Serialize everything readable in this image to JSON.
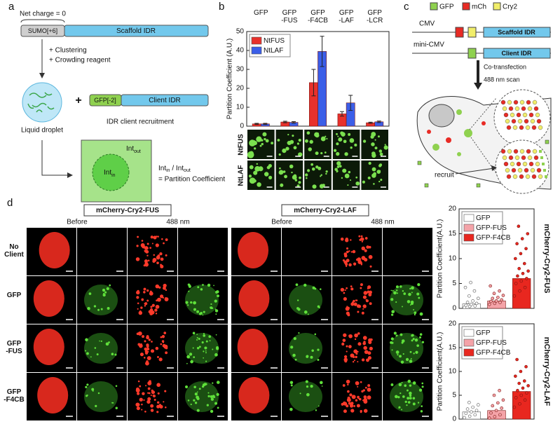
{
  "panel_labels": [
    "a",
    "b",
    "c",
    "d"
  ],
  "panel_a": {
    "net_charge": "Net charge = 0",
    "sumo": "SUMO[+6]",
    "scaffold": "Scaffold IDR",
    "step1": "+ Clustering",
    "step2": "+ Crowding reagent",
    "droplet": "Liquid droplet",
    "plus": "+",
    "gfp": "GFP[-2]",
    "client": "Client IDR",
    "recruitment": "IDR client recruitment",
    "int": "Int",
    "sub_in": "in",
    "sub_out": "out",
    "slash": " / ",
    "equation": "= Partition Coefficient"
  },
  "panel_b_images": {
    "rows": [
      "NtFUS",
      "NtLAF"
    ]
  },
  "panel_c": {
    "legend": [
      "GFP",
      "mCh",
      "Cry2"
    ],
    "promoter1": "CMV",
    "scaffold": "Scaffold IDR",
    "promoter2": "mini-CMV",
    "client": "Client IDR",
    "step1": "Co-transfection",
    "step2": "488 nm scan",
    "recruit": "recruit"
  },
  "panel_d": {
    "groups": [
      "mCherry-Cry2-FUS",
      "mCherry-Cry2-LAF"
    ],
    "columns": [
      "Before",
      "488 nm"
    ],
    "rows": [
      "No\nClient",
      "GFP",
      "GFP\n-FUS",
      "GFP\n-F4CB"
    ]
  },
  "chart_data": [
    {
      "type": "bar",
      "ylabel": "Partition Coefficient (A.U.)",
      "xlabel_position": "top",
      "categories": [
        "GFP",
        "GFP\n-FUS",
        "GFP\n-F4CB",
        "GFP\n-LAF",
        "GFP\n-LCR"
      ],
      "series": [
        {
          "name": "NtFUS",
          "color": "#e8312c",
          "values": [
            1.2,
            2.2,
            23,
            6.5,
            1.8
          ],
          "error": [
            0.3,
            0.4,
            7,
            1.2,
            0.3
          ]
        },
        {
          "name": "NtLAF",
          "color": "#3b5ee8",
          "values": [
            1.2,
            2.0,
            39.5,
            12.3,
            2.3
          ],
          "error": [
            0.3,
            0.4,
            8,
            4,
            0.4
          ]
        }
      ],
      "ylim": [
        0,
        50
      ],
      "yticks": [
        0,
        10,
        20,
        30,
        40,
        50
      ],
      "legend": "upper left"
    },
    {
      "type": "bar",
      "title": "mCherry-Cry2-FUS",
      "ylabel": "Partition Coefficient(A.U.)",
      "series": [
        {
          "name": "GFP",
          "color": "#ffffff",
          "values": [
            0.9
          ],
          "points": [
            0.2,
            0.4,
            0.5,
            0.6,
            0.8,
            1.0,
            1.2,
            1.5,
            2.0,
            2.5,
            3.5,
            4.2,
            5.2
          ]
        },
        {
          "name": "GFP-FUS",
          "color": "#f4a3a8",
          "values": [
            1.5
          ],
          "points": [
            0.8,
            1.0,
            1.2,
            1.4,
            1.5,
            1.7,
            2.0,
            2.2,
            2.6,
            3.0,
            3.5,
            4.5
          ]
        },
        {
          "name": "GFP-F4CB",
          "color": "#e8271f",
          "values": [
            6.0
          ],
          "points": [
            2.5,
            3.5,
            4.2,
            5,
            5.5,
            6,
            6.5,
            7,
            7.5,
            8,
            9,
            10,
            11,
            12,
            13,
            14,
            15,
            16.5
          ]
        }
      ],
      "ylim": [
        0,
        20
      ],
      "yticks": [
        0,
        5,
        10,
        15,
        20
      ],
      "legend": "upper left"
    },
    {
      "type": "bar",
      "title": "mCherry-Cry2-LAF",
      "ylabel": "Partition Coefficient(A.U.)",
      "series": [
        {
          "name": "GFP",
          "color": "#ffffff",
          "values": [
            1.5
          ],
          "points": [
            0.3,
            0.6,
            0.9,
            1.2,
            1.5,
            1.8,
            2.1,
            2.5,
            3.0,
            3.5
          ]
        },
        {
          "name": "GFP-FUS",
          "color": "#f4a3a8",
          "values": [
            1.8
          ],
          "points": [
            0.2,
            0.5,
            0.9,
            1.3,
            1.8,
            2.3,
            2.8,
            3.4,
            4.0,
            5.0,
            6.0
          ]
        },
        {
          "name": "GFP-F4CB",
          "color": "#e8271f",
          "values": [
            5.8
          ],
          "points": [
            2.5,
            3.2,
            4,
            4.5,
            5,
            5.5,
            6,
            6.5,
            7,
            7.5,
            8,
            9,
            10,
            11,
            12.5
          ]
        }
      ],
      "ylim": [
        0,
        20
      ],
      "yticks": [
        0,
        5,
        10,
        15,
        20
      ],
      "legend": "upper left"
    }
  ]
}
